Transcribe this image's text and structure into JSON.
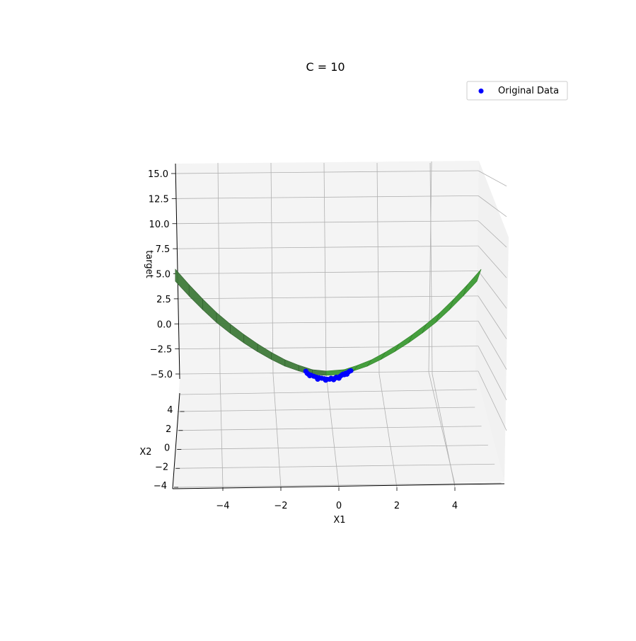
{
  "chart_data": {
    "type": "scatter",
    "title": "C = 10",
    "xlabel": "X1",
    "ylabel": "X2",
    "zlabel": "target",
    "xlim": [
      -5.5,
      5.5
    ],
    "ylim": [
      -4,
      5
    ],
    "zlim": [
      -5,
      15
    ],
    "x_ticks": [
      "−4",
      "−2",
      "0",
      "2",
      "4"
    ],
    "y_ticks": [
      "−4",
      "−2",
      "0",
      "2",
      "4"
    ],
    "z_ticks": [
      "−5.0",
      "−2.5",
      "0.0",
      "2.5",
      "5.0",
      "7.5",
      "10.0",
      "12.5",
      "15.0"
    ],
    "legend": {
      "label": "Original Data",
      "placement": "top-right"
    },
    "grid": true,
    "series": [
      {
        "name": "Original Data",
        "kind": "scatter",
        "color": "#0000ff",
        "x": [
          -0.9,
          -0.85,
          -0.8,
          -0.7,
          -0.6,
          -0.5,
          -0.4,
          -0.3,
          -0.2,
          -0.1,
          0.0,
          0.05,
          0.1,
          0.2,
          0.25,
          0.3,
          0.4,
          0.45,
          0.5,
          0.55,
          0.6,
          0.7,
          0.75,
          0.8,
          -0.75,
          -0.45,
          -0.15,
          0.15,
          0.35,
          0.65
        ],
        "z": [
          -4.3,
          -4.5,
          -4.6,
          -4.7,
          -4.8,
          -4.9,
          -4.95,
          -5.0,
          -5.05,
          -5.1,
          -5.1,
          -5.0,
          -5.05,
          -5.0,
          -4.9,
          -4.95,
          -4.8,
          -4.7,
          -4.6,
          -4.65,
          -4.5,
          -4.4,
          -4.3,
          -4.25,
          -4.75,
          -5.1,
          -5.2,
          -5.15,
          -5.0,
          -4.6
        ]
      },
      {
        "name": "",
        "kind": "surface",
        "color": "#3c9a34",
        "x": [
          -5.5,
          -5.0,
          -4.5,
          -4.0,
          -3.5,
          -3.0,
          -2.5,
          -2.0,
          -1.5,
          -1.0,
          -0.5,
          0.0,
          0.5,
          1.0,
          1.5,
          2.0,
          2.5,
          3.0,
          3.5,
          4.0,
          4.5,
          5.0,
          5.5
        ],
        "z": [
          5.2,
          3.7,
          2.3,
          1.0,
          -0.1,
          -1.1,
          -2.0,
          -2.8,
          -3.5,
          -4.0,
          -4.4,
          -4.5,
          -4.4,
          -4.0,
          -3.5,
          -2.8,
          -2.0,
          -1.1,
          -0.1,
          1.0,
          2.3,
          3.7,
          5.2
        ]
      }
    ]
  }
}
